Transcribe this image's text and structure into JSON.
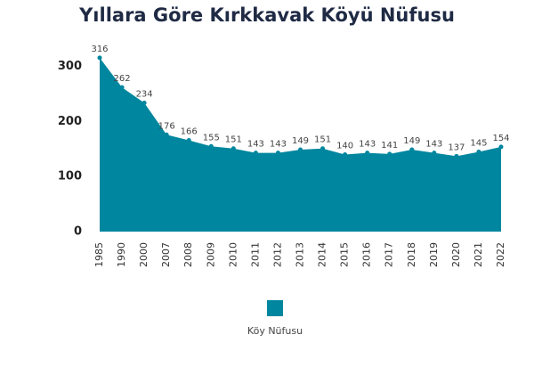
{
  "chart_data": {
    "type": "area",
    "title": "Yıllara Göre Kırkkavak Köyü Nüfusu",
    "categories": [
      "1985",
      "1990",
      "2000",
      "2007",
      "2008",
      "2009",
      "2010",
      "2011",
      "2012",
      "2013",
      "2014",
      "2015",
      "2016",
      "2017",
      "2018",
      "2019",
      "2020",
      "2021",
      "2022"
    ],
    "series": [
      {
        "name": "Köy Nüfusu",
        "color": "#00869e",
        "values": [
          316,
          262,
          234,
          176,
          166,
          155,
          151,
          143,
          143,
          149,
          151,
          140,
          143,
          141,
          149,
          143,
          137,
          145,
          154
        ]
      }
    ],
    "ylim": [
      0,
      340
    ],
    "yticks": [
      0,
      100,
      200,
      300
    ],
    "grid": false,
    "legend": "bottom"
  }
}
